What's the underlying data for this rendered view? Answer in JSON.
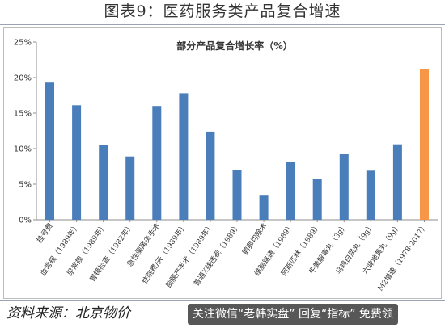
{
  "page_title": "图表9：医药服务类产品复合增速",
  "source_text": "资料来源：北京物价",
  "watermark_text": "关注微信“老韩实盘” 回复“指标” 免费领",
  "colors": {
    "bar": "#4a7ebb",
    "highlight": "#f79646",
    "axis": "#8c8c8c",
    "text": "#333333"
  },
  "chart_data": {
    "type": "bar",
    "title": "部分产品复合增长率（%）",
    "xlabel": "",
    "ylabel": "",
    "ylim": [
      0,
      25
    ],
    "y_ticks": [
      "0%",
      "5%",
      "10%",
      "15%",
      "20%",
      "25%"
    ],
    "grid": false,
    "categories": [
      "挂号费",
      "血常规（1989年）",
      "尿常规（1989年）",
      "胃镜检查（1982年）",
      "急性阑尾炎手术",
      "住院费/天（1989年）",
      "剖腹产手术（1989年）",
      "普通X线透视（1989）",
      "鹅卵切除术",
      "维脑路通（1989）",
      "阿斯匹林（1989）",
      "牛黄解毒丸（3g）",
      "乌鸡白凤丸（9g）",
      "六味地黄丸（9g）",
      "M2增速（1978-2017）"
    ],
    "values": [
      19.3,
      16.1,
      10.5,
      8.9,
      16.0,
      17.8,
      12.4,
      7.0,
      3.5,
      8.1,
      5.8,
      9.2,
      6.9,
      10.6,
      21.2
    ],
    "highlight_index": 14
  }
}
